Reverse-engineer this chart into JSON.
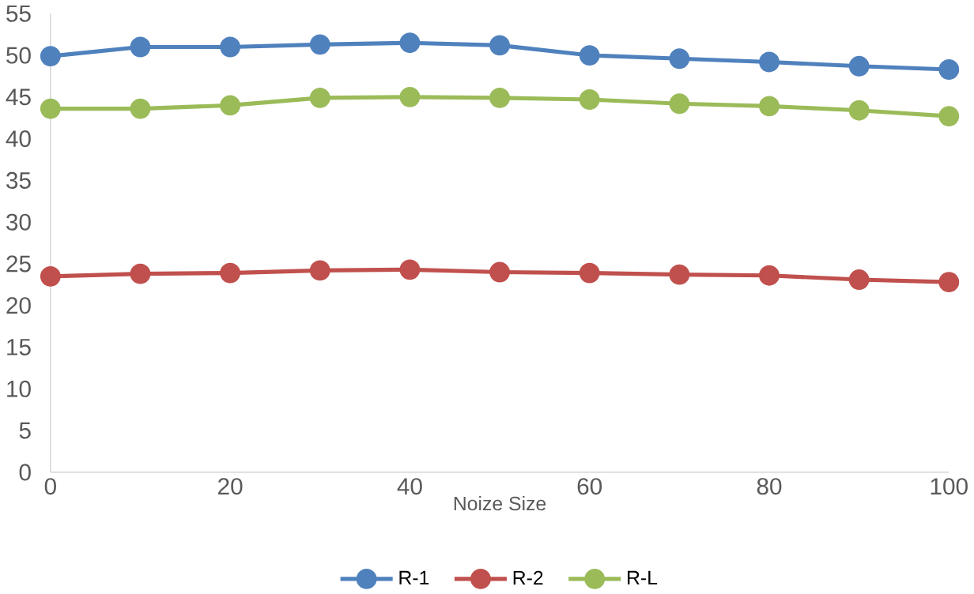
{
  "chart_data": {
    "type": "line",
    "xlabel": "Noize Size",
    "x": [
      0,
      10,
      20,
      30,
      40,
      50,
      60,
      70,
      80,
      90,
      100
    ],
    "series": [
      {
        "name": "R-1",
        "color": "#4f81bd",
        "values": [
          49.9,
          51.0,
          51.0,
          51.3,
          51.5,
          51.2,
          50.0,
          49.6,
          49.2,
          48.7,
          48.3
        ]
      },
      {
        "name": "R-2",
        "color": "#c0504d",
        "values": [
          23.5,
          23.8,
          23.9,
          24.2,
          24.3,
          24.0,
          23.9,
          23.7,
          23.6,
          23.1,
          22.8
        ]
      },
      {
        "name": "R-L",
        "color": "#9bbb59",
        "values": [
          43.6,
          43.6,
          44.0,
          44.9,
          45.0,
          44.9,
          44.7,
          44.2,
          43.9,
          43.4,
          42.7
        ]
      }
    ],
    "xlim": [
      0,
      100
    ],
    "ylim": [
      0,
      55
    ],
    "xticks": [
      0,
      20,
      40,
      60,
      80,
      100
    ],
    "yticks": [
      0,
      5,
      10,
      15,
      20,
      25,
      30,
      35,
      40,
      45,
      50,
      55
    ],
    "grid": false,
    "legend": "bottom",
    "marker": "circle",
    "line_style": "solid"
  }
}
